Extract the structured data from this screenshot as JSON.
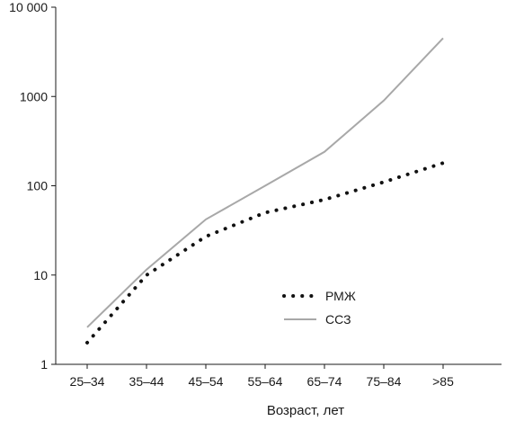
{
  "chart_data": {
    "type": "line",
    "title": "",
    "xlabel": "Возраст, лет",
    "ylabel": "",
    "yscale": "log",
    "ylim": [
      1,
      10000
    ],
    "y_ticks": [
      1,
      10,
      100,
      1000,
      10000
    ],
    "y_tick_labels": [
      "1",
      "10",
      "100",
      "1000",
      "10 000"
    ],
    "categories": [
      "25–34",
      "35–44",
      "45–54",
      "55–64",
      "65–74",
      "75–84",
      ">85"
    ],
    "series": [
      {
        "name": "РМЖ",
        "style": "dotted",
        "color": "#111111",
        "values": [
          1.75,
          10,
          27,
          50,
          70,
          110,
          180
        ]
      },
      {
        "name": "ССЗ",
        "style": "solid",
        "color": "#a8a8a8",
        "values": [
          2.6,
          11.5,
          42,
          100,
          240,
          900,
          4500
        ]
      }
    ],
    "grid": false,
    "legend_position": "lower-right"
  }
}
